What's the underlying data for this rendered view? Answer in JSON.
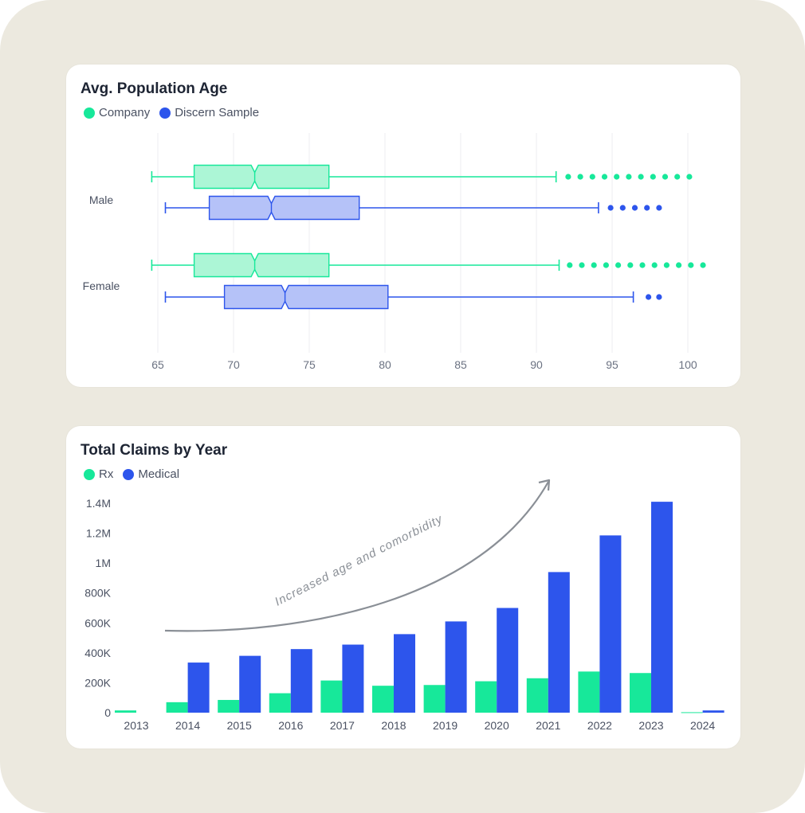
{
  "colors": {
    "company": "#17e89a",
    "sample": "#2d55ec",
    "company_fill": "#acf6d6",
    "sample_fill": "#b5c2f8"
  },
  "age_chart": {
    "title": "Avg. Population Age",
    "legend": [
      {
        "label": "Company",
        "color": "#17e89a"
      },
      {
        "label": "Discern Sample",
        "color": "#2d55ec"
      }
    ]
  },
  "claims_chart": {
    "title": "Total Claims by Year",
    "legend": [
      {
        "label": "Rx",
        "color": "#17e89a"
      },
      {
        "label": "Medical",
        "color": "#2d55ec"
      }
    ],
    "annotation": "Increased age and comorbidity"
  },
  "chart_data": [
    {
      "type": "box",
      "title": "Avg. Population Age",
      "categories": [
        "Male",
        "Female"
      ],
      "xlim": [
        65,
        100
      ],
      "xticks": [
        65,
        70,
        75,
        80,
        85,
        90,
        95,
        100
      ],
      "grid": true,
      "legend_position": "top-left",
      "series": [
        {
          "name": "Company",
          "boxes": [
            {
              "category": "Male",
              "whisker_low": 64.6,
              "q1": 67.4,
              "median": 71.4,
              "q3": 76.3,
              "whisker_high": 91.3,
              "outliers": [
                92.1,
                92.9,
                93.7,
                94.5,
                95.3,
                96.1,
                96.9,
                97.7,
                98.5,
                99.3,
                100.1
              ]
            },
            {
              "category": "Female",
              "whisker_low": 64.6,
              "q1": 67.4,
              "median": 71.4,
              "q3": 76.3,
              "whisker_high": 91.5,
              "outliers": [
                92.2,
                93.0,
                93.8,
                94.6,
                95.4,
                96.2,
                97.0,
                97.8,
                98.6,
                99.4,
                100.2,
                101.0
              ]
            }
          ]
        },
        {
          "name": "Discern Sample",
          "boxes": [
            {
              "category": "Male",
              "whisker_low": 65.5,
              "q1": 68.4,
              "median": 72.5,
              "q3": 78.3,
              "whisker_high": 94.1,
              "outliers": [
                94.9,
                95.7,
                96.5,
                97.3,
                98.1
              ]
            },
            {
              "category": "Female",
              "whisker_low": 65.5,
              "q1": 69.4,
              "median": 73.4,
              "q3": 80.2,
              "whisker_high": 96.4,
              "outliers": [
                97.4,
                98.1
              ]
            }
          ]
        }
      ]
    },
    {
      "type": "bar",
      "title": "Total Claims by Year",
      "categories": [
        "2013",
        "2014",
        "2015",
        "2016",
        "2017",
        "2018",
        "2019",
        "2020",
        "2021",
        "2022",
        "2023",
        "2024"
      ],
      "ylim": [
        0,
        1400000
      ],
      "yticks": [
        0,
        200000,
        400000,
        600000,
        800000,
        1000000,
        1200000,
        1400000
      ],
      "ytick_labels": [
        "0",
        "200K",
        "400K",
        "600K",
        "800K",
        "1M",
        "1.2M",
        "1.4M"
      ],
      "grid": false,
      "legend_position": "top-left",
      "series": [
        {
          "name": "Rx",
          "values": [
            15000,
            70000,
            85000,
            130000,
            215000,
            180000,
            185000,
            210000,
            230000,
            275000,
            265000,
            3000
          ]
        },
        {
          "name": "Medical",
          "values": [
            0,
            335000,
            380000,
            425000,
            455000,
            525000,
            610000,
            700000,
            940000,
            1185000,
            1410000,
            15000
          ]
        }
      ]
    }
  ]
}
